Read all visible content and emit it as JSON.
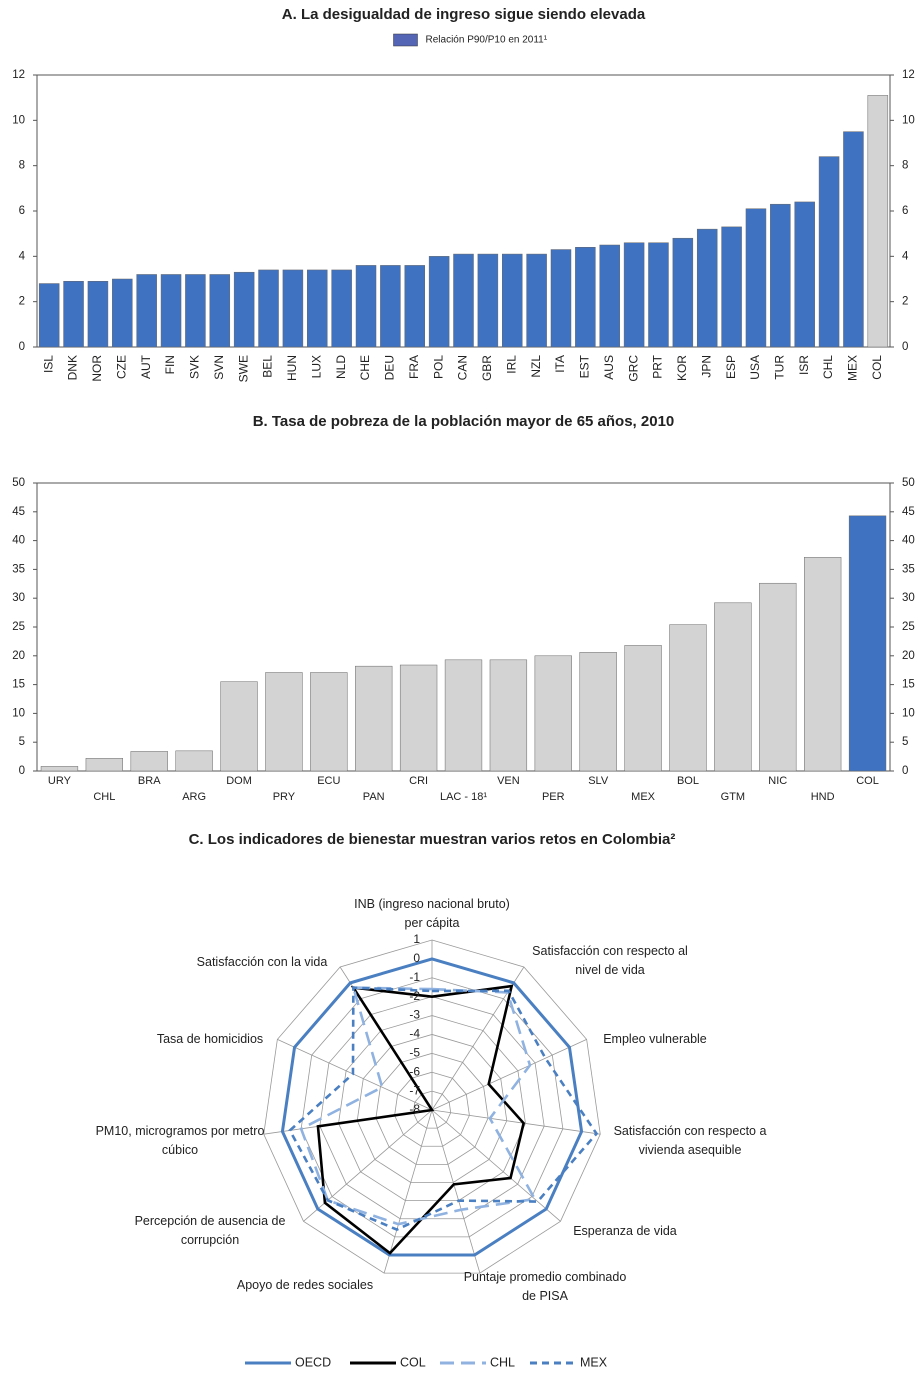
{
  "chart_data": [
    {
      "type": "bar",
      "title": "A. La desigualdad de ingreso sigue siendo elevada",
      "categories": [
        "ISL",
        "DNK",
        "NOR",
        "CZE",
        "AUT",
        "FIN",
        "SVK",
        "SVN",
        "SWE",
        "BEL",
        "HUN",
        "LUX",
        "NLD",
        "CHE",
        "DEU",
        "FRA",
        "POL",
        "CAN",
        "GBR",
        "IRL",
        "NZL",
        "ITA",
        "EST",
        "AUS",
        "GRC",
        "PRT",
        "KOR",
        "JPN",
        "ESP",
        "USA",
        "TUR",
        "ISR",
        "CHL",
        "MEX",
        "COL"
      ],
      "series": [
        {
          "name": "Relación P90/P10 en 2011¹",
          "color": "#5565b5",
          "values": [
            2.8,
            2.9,
            2.9,
            3.0,
            3.2,
            3.2,
            3.2,
            3.2,
            3.3,
            3.4,
            3.4,
            3.4,
            3.4,
            3.6,
            3.6,
            3.6,
            4.0,
            4.1,
            4.1,
            4.1,
            4.1,
            4.3,
            4.4,
            4.5,
            4.6,
            4.6,
            4.8,
            5.2,
            5.3,
            6.1,
            6.3,
            6.4,
            8.4,
            9.5,
            11.1
          ]
        }
      ],
      "bar_colors": [
        "#3f72c0",
        "#3f72c0",
        "#3f72c0",
        "#3f72c0",
        "#3f72c0",
        "#3f72c0",
        "#3f72c0",
        "#3f72c0",
        "#3f72c0",
        "#3f72c0",
        "#3f72c0",
        "#3f72c0",
        "#3f72c0",
        "#3f72c0",
        "#3f72c0",
        "#3f72c0",
        "#3f72c0",
        "#3f72c0",
        "#3f72c0",
        "#3f72c0",
        "#3f72c0",
        "#3f72c0",
        "#3f72c0",
        "#3f72c0",
        "#3f72c0",
        "#3f72c0",
        "#3f72c0",
        "#3f72c0",
        "#3f72c0",
        "#3f72c0",
        "#3f72c0",
        "#3f72c0",
        "#3f72c0",
        "#3f72c0",
        "#d3d3d3"
      ],
      "ylim": [
        0,
        12
      ],
      "yticks": [
        0,
        2,
        4,
        6,
        8,
        10,
        12
      ]
    },
    {
      "type": "bar",
      "title": "B. Tasa de pobreza de la población mayor de 65 años, 2010",
      "categories": [
        "URY",
        "CHL",
        "BRA",
        "ARG",
        "DOM",
        "PRY",
        "ECU",
        "PAN",
        "CRI",
        "LAC - 18¹",
        "VEN",
        "PER",
        "SLV",
        "MEX",
        "BOL",
        "GTM",
        "NIC",
        "HND",
        "COL"
      ],
      "values": [
        0.8,
        2.2,
        3.4,
        3.5,
        15.5,
        17.1,
        17.1,
        18.2,
        18.4,
        19.3,
        19.3,
        20.0,
        20.6,
        21.8,
        25.4,
        29.2,
        32.6,
        37.1,
        44.3
      ],
      "bar_colors": [
        "#d3d3d3",
        "#d3d3d3",
        "#d3d3d3",
        "#d3d3d3",
        "#d3d3d3",
        "#d3d3d3",
        "#d3d3d3",
        "#d3d3d3",
        "#d3d3d3",
        "#d3d3d3",
        "#d3d3d3",
        "#d3d3d3",
        "#d3d3d3",
        "#d3d3d3",
        "#d3d3d3",
        "#d3d3d3",
        "#d3d3d3",
        "#d3d3d3",
        "#3f72c0"
      ],
      "ylim": [
        0,
        50
      ],
      "yticks": [
        0,
        5,
        10,
        15,
        20,
        25,
        30,
        35,
        40,
        45,
        50
      ]
    },
    {
      "type": "radar",
      "title": "C. Los indicadores de bienestar muestran varios retos en Colombia²",
      "categories": [
        "INB (ingreso nacional bruto) per cápita",
        "Satisfacción con respecto al nivel de vida",
        "Empleo vulnerable",
        "Satisfacción con respecto a vivienda asequible",
        "Esperanza de vida",
        "Puntaje promedio combinado de PISA",
        "Apoyo de redes sociales",
        "Percepción de ausencia de corrupción",
        "PM10, microgramos por metro cúbico",
        "Tasa de homicidios",
        "Satisfacción con la vida"
      ],
      "rlim": [
        -8,
        1
      ],
      "rticks": [
        1,
        0,
        -1,
        -2,
        -3,
        -4,
        -5,
        -6,
        -7,
        -8
      ],
      "series": [
        {
          "name": "OECD",
          "color": "#4a7fc1",
          "dash": "solid",
          "values": [
            0,
            0,
            0,
            0,
            0,
            0,
            0,
            0,
            0,
            0,
            0
          ]
        },
        {
          "name": "COL",
          "color": "#000000",
          "dash": "solid",
          "values": [
            -2.0,
            -0.2,
            -4.7,
            -3.1,
            -2.5,
            -3.9,
            -0.1,
            -0.5,
            -1.9,
            -8.0,
            -0.3
          ]
        },
        {
          "name": "CHL",
          "color": "#8fb2e0",
          "dash": "long",
          "values": [
            -1.6,
            -0.6,
            -2.3,
            -4.9,
            -0.8,
            -2.5,
            -1.7,
            -0.7,
            -1.0,
            -5.1,
            -0.3
          ]
        },
        {
          "name": "MEX",
          "color": "#4a7fc1",
          "dash": "short",
          "values": [
            -1.7,
            -0.5,
            -1.4,
            0.8,
            -0.6,
            -3.0,
            -1.4,
            -0.7,
            -0.4,
            -3.4,
            -0.3
          ]
        }
      ]
    }
  ]
}
